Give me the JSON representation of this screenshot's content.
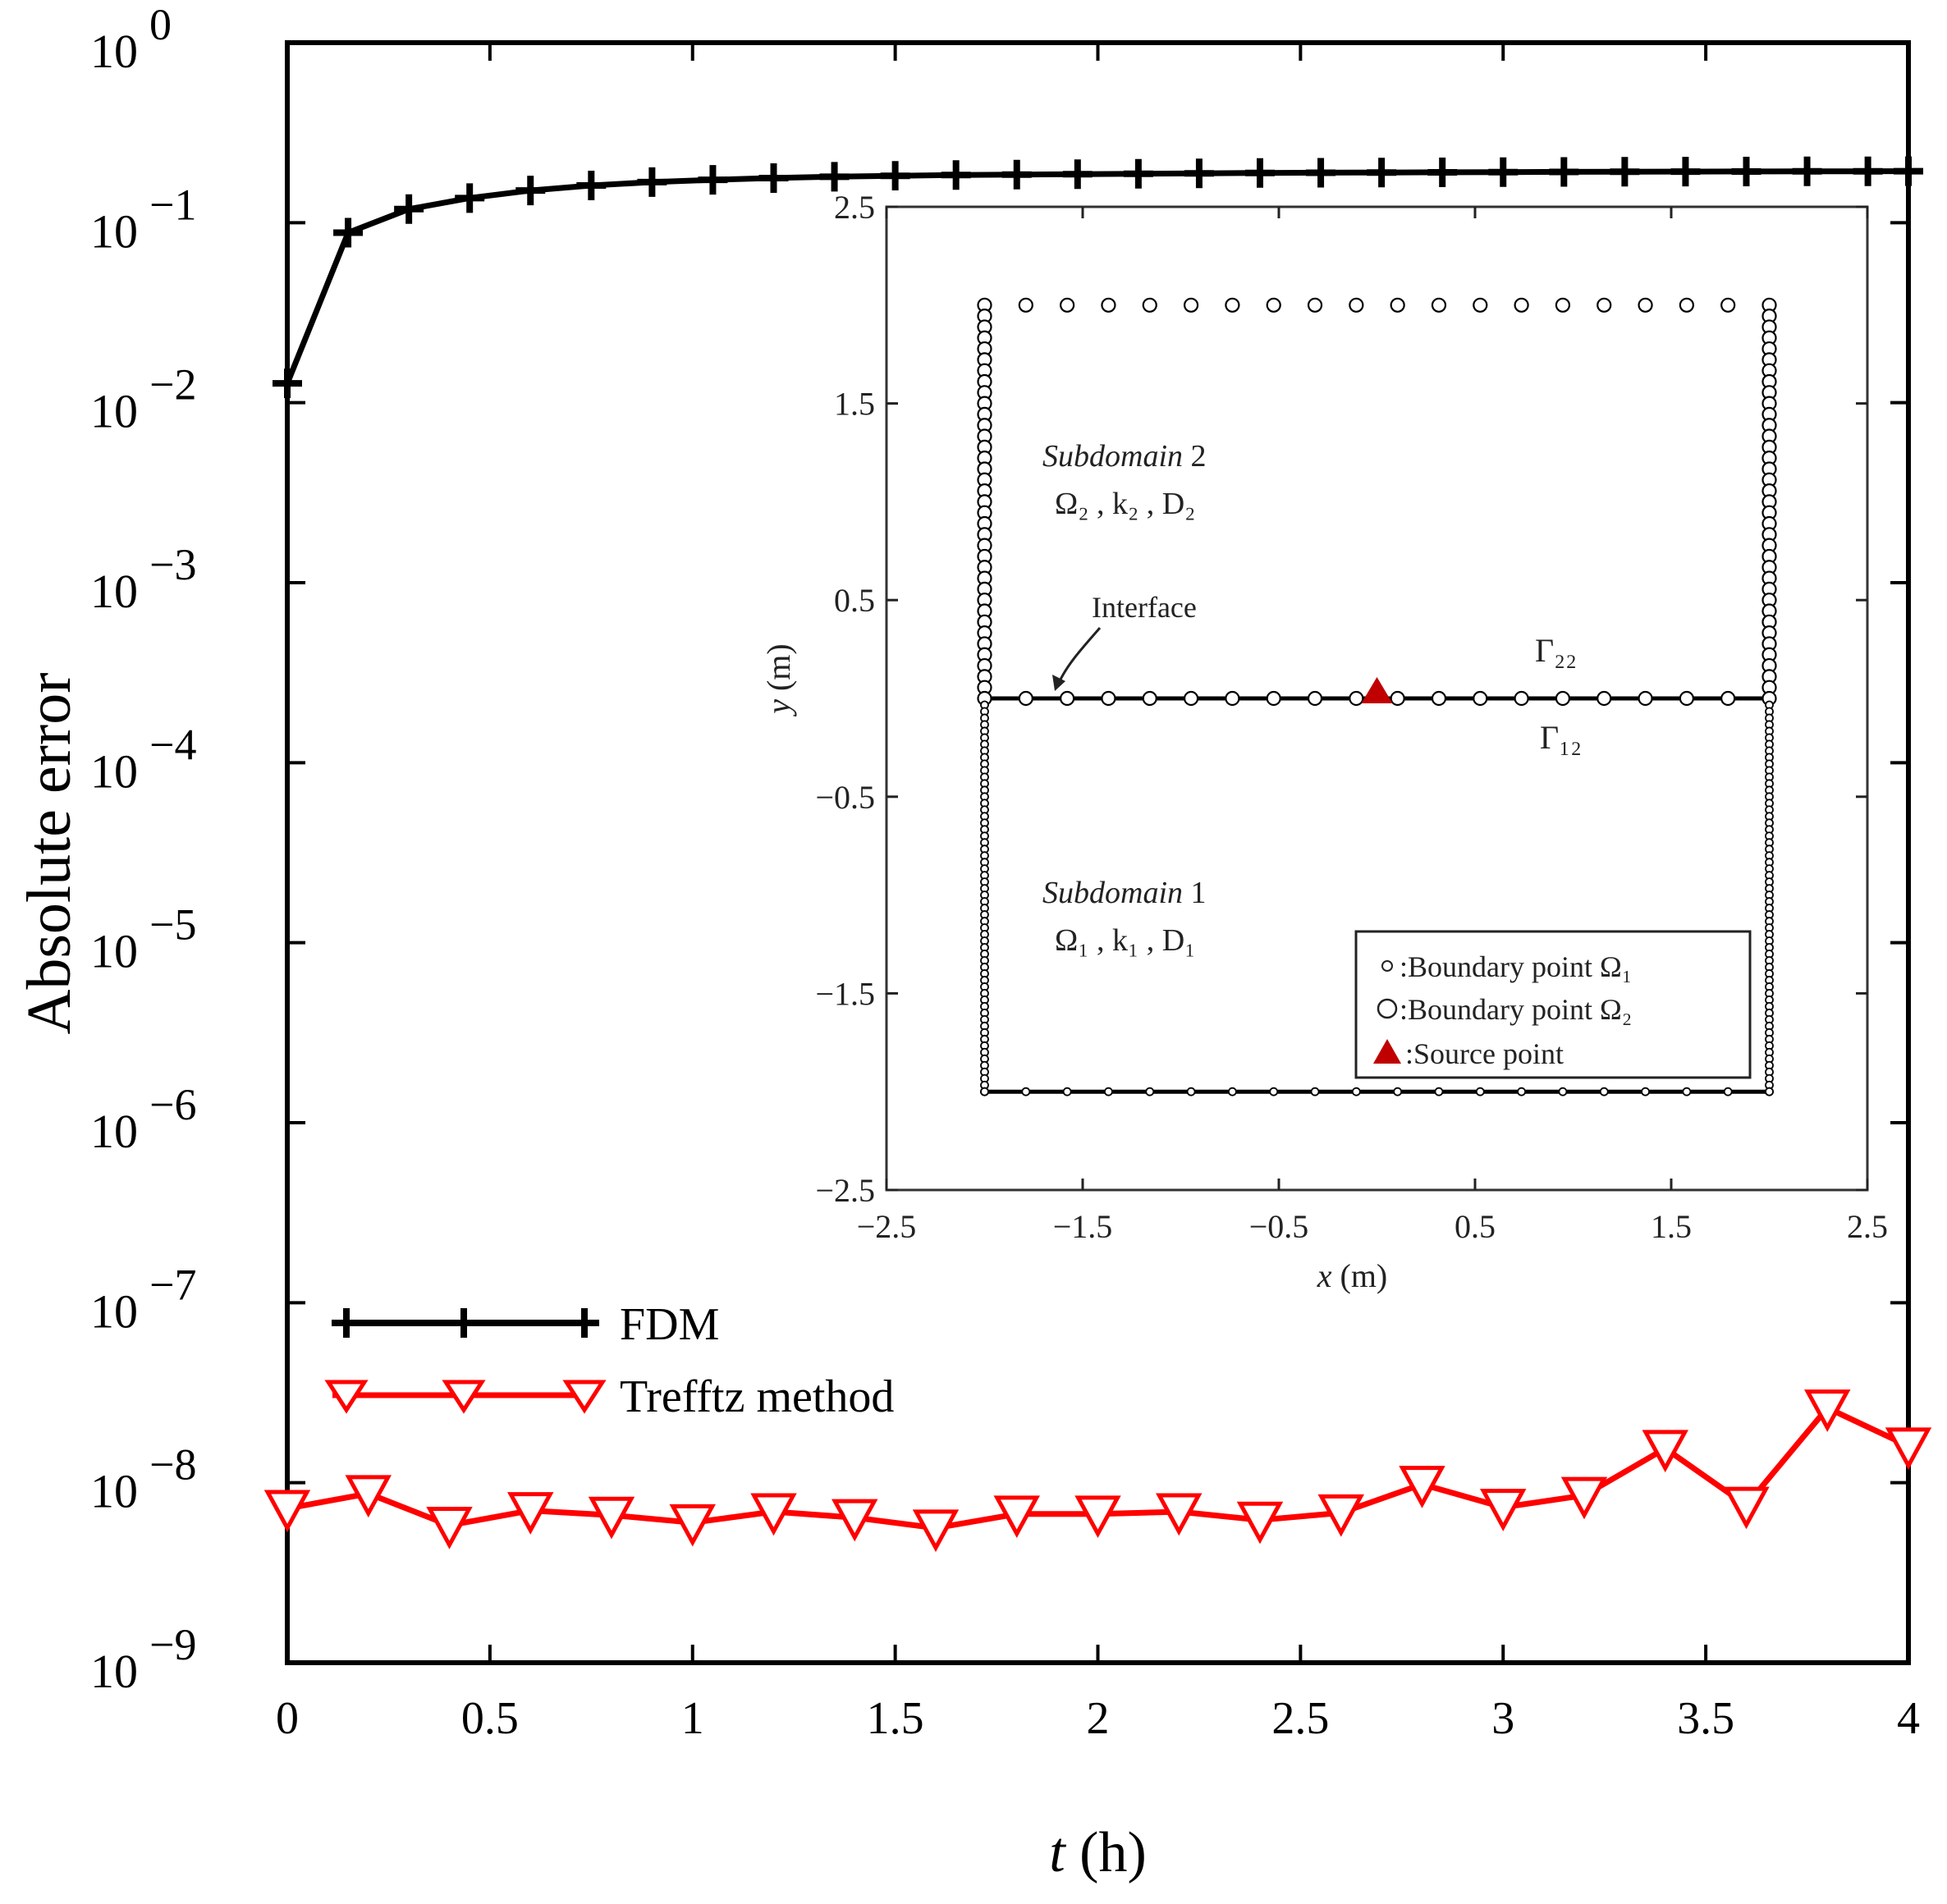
{
  "chart_data": [
    {
      "type": "line",
      "yscale": "log",
      "xlabel": "t (h)",
      "xlabel_var": "t",
      "xlabel_unit": "(h)",
      "ylabel": "Absolute error",
      "xlim": [
        0,
        4
      ],
      "ylim_exp": [
        -9,
        0
      ],
      "xticks": [
        0,
        0.5,
        1,
        1.5,
        2,
        2.5,
        3,
        3.5,
        4
      ],
      "xtick_labels": [
        "0",
        "0.5",
        "1",
        "1.5",
        "2",
        "2.5",
        "3",
        "3.5",
        "4"
      ],
      "ytick_exps": [
        0,
        -1,
        -2,
        -3,
        -4,
        -5,
        -6,
        -7,
        -8,
        -9
      ],
      "ytick_base": "10",
      "ytick_exp_labels": [
        "0",
        "−1",
        "−2",
        "−3",
        "−4",
        "−5",
        "−6",
        "−7",
        "−8",
        "−9"
      ],
      "series": [
        {
          "name": "FDM",
          "color": "#000000",
          "marker": "plus",
          "curve": {
            "a": 0.32,
            "c": 0.095,
            "tau": 0.3
          },
          "x": [
            0,
            0.15,
            0.3,
            0.45,
            0.6,
            0.75,
            0.9,
            1.05,
            1.2,
            1.35,
            1.5,
            1.65,
            1.8,
            1.95,
            2.1,
            2.25,
            2.4,
            2.55,
            2.7,
            2.85,
            3.0,
            3.15,
            3.3,
            3.45,
            3.6,
            3.75,
            3.9,
            4.0
          ],
          "y": [
            0.0128,
            0.088,
            0.119,
            0.137,
            0.151,
            0.161,
            0.168,
            0.173,
            0.177,
            0.18,
            0.182,
            0.184,
            0.185,
            0.186,
            0.187,
            0.188,
            0.189,
            0.1895,
            0.19,
            0.1905,
            0.191,
            0.1915,
            0.192,
            0.1922,
            0.1925,
            0.1928,
            0.193,
            0.1932
          ]
        },
        {
          "name": "Trefftz method",
          "color": "#ff0000",
          "marker": "triangle-down",
          "x": [
            0,
            0.2,
            0.4,
            0.6,
            0.8,
            1.0,
            1.2,
            1.4,
            1.6,
            1.8,
            2.0,
            2.2,
            2.4,
            2.6,
            2.8,
            3.0,
            3.2,
            3.4,
            3.6,
            3.8,
            4.0
          ],
          "y": [
            7.2e-09,
            8.7e-09,
            5.8e-09,
            7e-09,
            6.6e-09,
            6e-09,
            6.9e-09,
            6.4e-09,
            5.6e-09,
            6.7e-09,
            6.7e-09,
            6.9e-09,
            6.2e-09,
            6.8e-09,
            9.8e-09,
            7.3e-09,
            8.5e-09,
            1.55e-08,
            7.5e-09,
            2.6e-08,
            1.6e-08
          ]
        }
      ],
      "legend": {
        "location": "lower-left",
        "entries": [
          "FDM",
          "Trefftz method"
        ]
      }
    },
    {
      "type": "scatter",
      "role": "inset",
      "xlabel": "x (m)",
      "xlabel_var": "x",
      "xlabel_unit": "(m)",
      "ylabel": "y (m)",
      "ylabel_var": "y",
      "ylabel_unit": "(m)",
      "xlim": [
        -2.5,
        2.5
      ],
      "ylim": [
        -2.5,
        2.5
      ],
      "xticks": [
        -2.5,
        -1.5,
        -0.5,
        0.5,
        1.5,
        2.5
      ],
      "xtick_labels": [
        "−2.5",
        "−1.5",
        "−0.5",
        "0.5",
        "1.5",
        "2.5"
      ],
      "yticks": [
        2.5,
        1.5,
        0.5,
        -0.5,
        -1.5,
        -2.5
      ],
      "ytick_labels": [
        "2.5",
        "1.5",
        "0.5",
        "−0.5",
        "−1.5",
        "−2.5"
      ],
      "domain_box": {
        "x": [
          -2,
          2
        ],
        "y": [
          -2,
          2
        ]
      },
      "interface_y": 0,
      "boundary_points_omega2": {
        "top_count": 20,
        "side_count": 36,
        "interface_count": 20,
        "color": "#000000"
      },
      "boundary_points_omega1": {
        "bottom_count": 20,
        "side_count": 60,
        "color": "#000000"
      },
      "source_point": {
        "x": 0,
        "y": 0,
        "color": "#c00000"
      },
      "annotations": {
        "subdomain2_title": "Subdomain",
        "subdomain2_num": "2",
        "subdomain2_params": "Ω₂ , k₂ , D₂",
        "subdomain1_title": "Subdomain",
        "subdomain1_num": "1",
        "subdomain1_params": "Ω₁ , k₁ , D₁",
        "interface": "Interface",
        "gamma22": "Γ₂₂",
        "gamma12": "Γ₁₂"
      },
      "legend": {
        "location": "lower-right",
        "entries": [
          ":Boundary point Ω₁",
          ":Boundary  point Ω₂",
          ":Source point"
        ]
      }
    }
  ]
}
